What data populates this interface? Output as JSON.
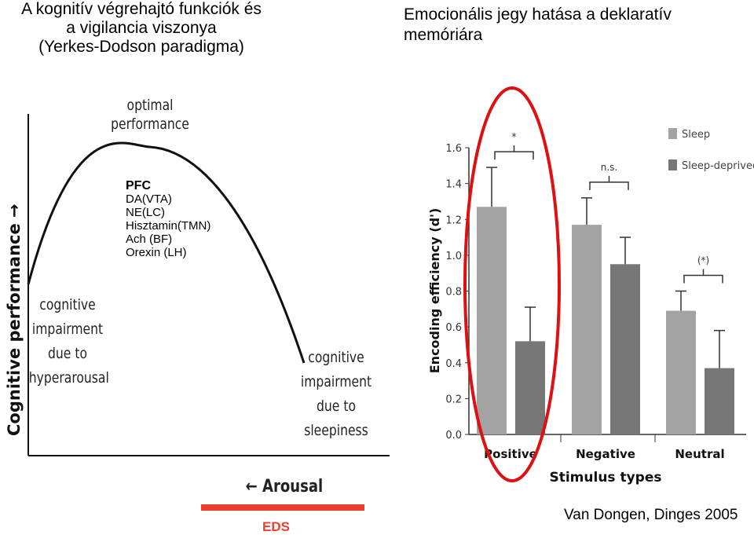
{
  "left_panel": {
    "title_lines": [
      "A kognitív végrehajtó funkciók és",
      "a vigilancia viszonya",
      "(Yerkes-Dodson paradigma)"
    ],
    "y_axis_label": "Cognitive performance →",
    "x_axis_label": "← Arousal",
    "peak_label_lines": [
      "optimal",
      "performance"
    ],
    "left_label_lines": [
      "cognitive",
      "impairment",
      "due to",
      "hyperarousal"
    ],
    "right_label_lines": [
      "cognitive",
      "impairment",
      "due to",
      "sleepiness"
    ],
    "pfc_box": {
      "heading": "PFC",
      "items": [
        "DA(VTA)",
        "NE(LC)",
        "Hisztamin(TMN)",
        "Ach (BF)",
        "Orexin (LH)"
      ]
    },
    "eds_label": "EDS",
    "colors": {
      "eds": "#ee3d2a",
      "curve": "#111111"
    }
  },
  "right_panel": {
    "title_lines": [
      "Emocionális jegy hatása a deklaratív",
      "memóriára"
    ],
    "citation": "Van Dongen, Dinges 2005",
    "highlight_color": "#dd1111"
  },
  "chart_data": [
    {
      "type": "line",
      "description_of_shape": "inverted U",
      "xlabel": "← Arousal",
      "ylabel": "Cognitive performance →"
    },
    {
      "type": "bar",
      "categories": [
        "Positive",
        "Negative",
        "Neutral"
      ],
      "xlabel": "Stimulus types",
      "ylabel": "Encoding efficiency (d')",
      "ylim": [
        0,
        1.6
      ],
      "yticks": [
        "0.0",
        "0.2",
        "0.4",
        "0.6",
        "0.8",
        "1.0",
        "1.2",
        "1.4",
        "1.6"
      ],
      "series": [
        {
          "name": "Sleep",
          "color": "#a3a3a3",
          "values": [
            1.27,
            1.17,
            0.69
          ],
          "errors": [
            0.22,
            0.15,
            0.11
          ]
        },
        {
          "name": "Sleep-deprived",
          "color": "#777777",
          "values": [
            0.52,
            0.95,
            0.37
          ],
          "errors": [
            0.19,
            0.15,
            0.21
          ]
        }
      ],
      "significance": [
        "*",
        "n.s.",
        "(*)"
      ],
      "legend_position": "top-right"
    }
  ]
}
